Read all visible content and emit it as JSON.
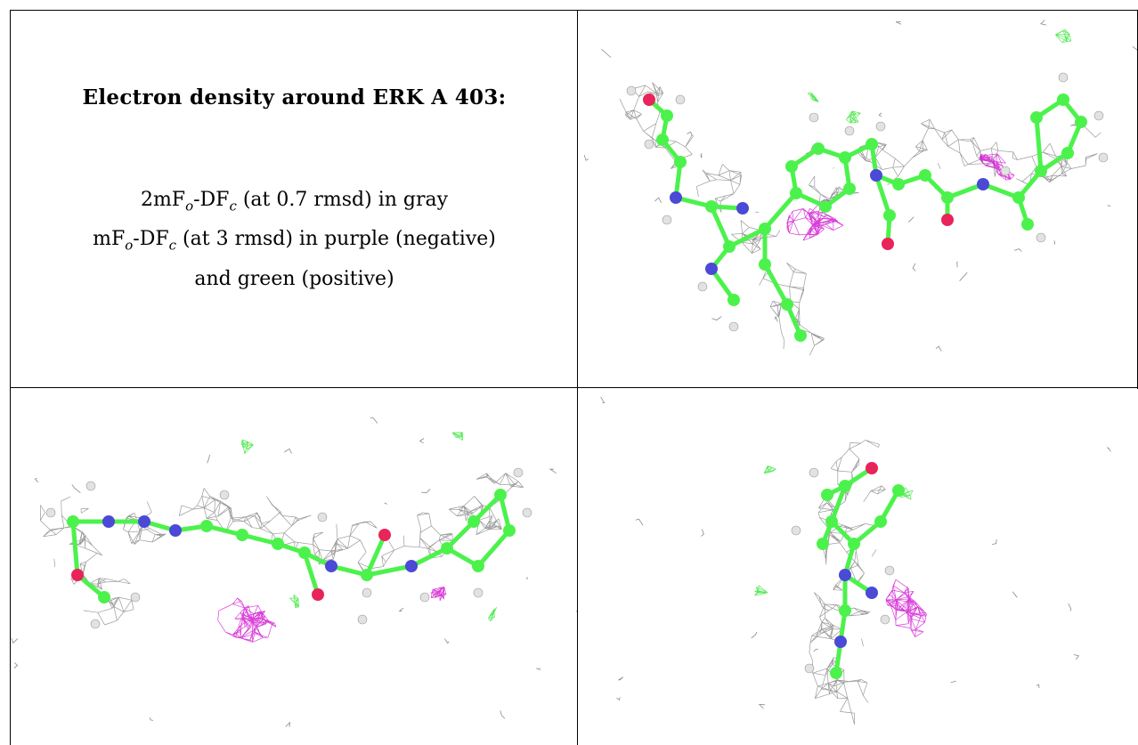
{
  "caption": {
    "title": "Electron density around ERK A 403:",
    "line1": {
      "prefix": "2mF",
      "s1": "o",
      "mid": "-DF",
      "s2": "c",
      "suffix": " (at 0.7 rmsd) in gray"
    },
    "line2": {
      "prefix": "mF",
      "s1": "o",
      "mid": "-DF",
      "s2": "c",
      "suffix": " (at 3 rmsd) in purple (negative)"
    },
    "line3": "and green (positive)"
  },
  "colors": {
    "carbon": "#4cf24c",
    "nitrogen": "#4a4ad6",
    "oxygen": "#e8245a",
    "hydrogen": "#e2e2e2",
    "mesh_gray": "#8a8a8a",
    "mesh_negative": "#d21fd2",
    "mesh_positive": "#3ce63c"
  },
  "views": [
    {
      "name": "view-top-right"
    },
    {
      "name": "view-bottom-left"
    },
    {
      "name": "view-bottom-right"
    }
  ]
}
